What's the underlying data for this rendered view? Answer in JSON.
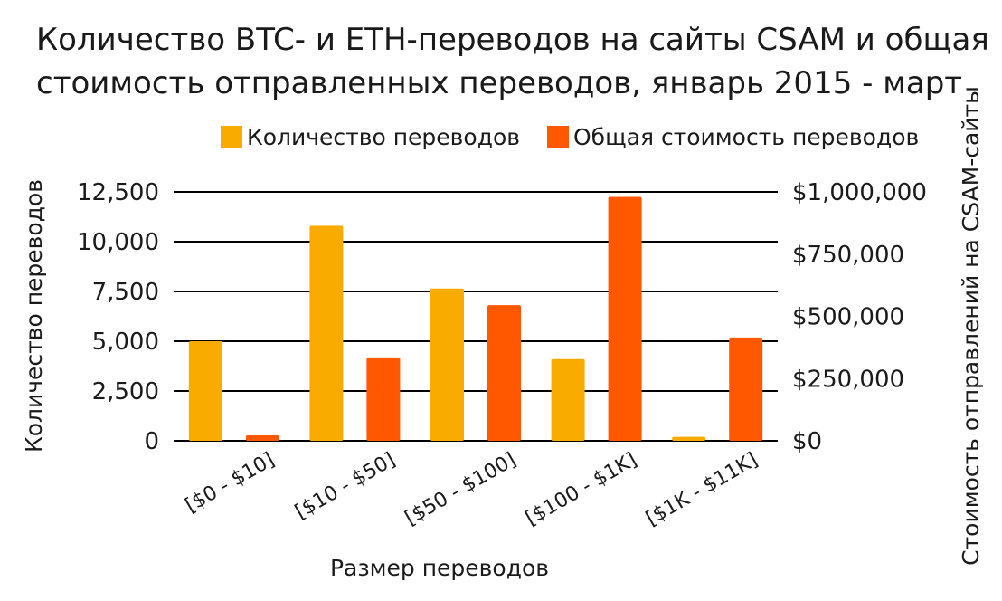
{
  "chart_data": {
    "type": "bar",
    "title": [
      "Количество BTC- и ETH-переводов на сайты CSAM и общая",
      "стоимость отправленных переводов, январь 2015 - март"
    ],
    "categories": [
      "[$0 - $10]",
      "[$10 - $50]",
      "[$50 - $100]",
      "[$100 - $1K]",
      "[$1K - $11K]"
    ],
    "xlabel": "Размер переводов",
    "ylabel_left": "Количество переводов",
    "ylabel_right": "Стоимость отправлений на CSAM-сайты",
    "ylim_left": [
      0,
      12500
    ],
    "ylim_right": [
      0,
      1000000
    ],
    "yticks_left": [
      "0",
      "2,500",
      "5,000",
      "7,500",
      "10,000",
      "12,500"
    ],
    "yticks_right": [
      "$0",
      "$250,000",
      "$500,000",
      "$750,000",
      "$1,000,000"
    ],
    "grid": true,
    "legend_position": "top-right",
    "series": [
      {
        "name": "Количество переводов",
        "axis": "left",
        "color": "#FAAB00",
        "values": [
          5000,
          10800,
          7650,
          4100,
          200
        ]
      },
      {
        "name": "Общая стоимость переводов",
        "axis": "right",
        "color": "#FF5800",
        "values": [
          22000,
          335000,
          545000,
          980000,
          415000
        ]
      }
    ]
  }
}
